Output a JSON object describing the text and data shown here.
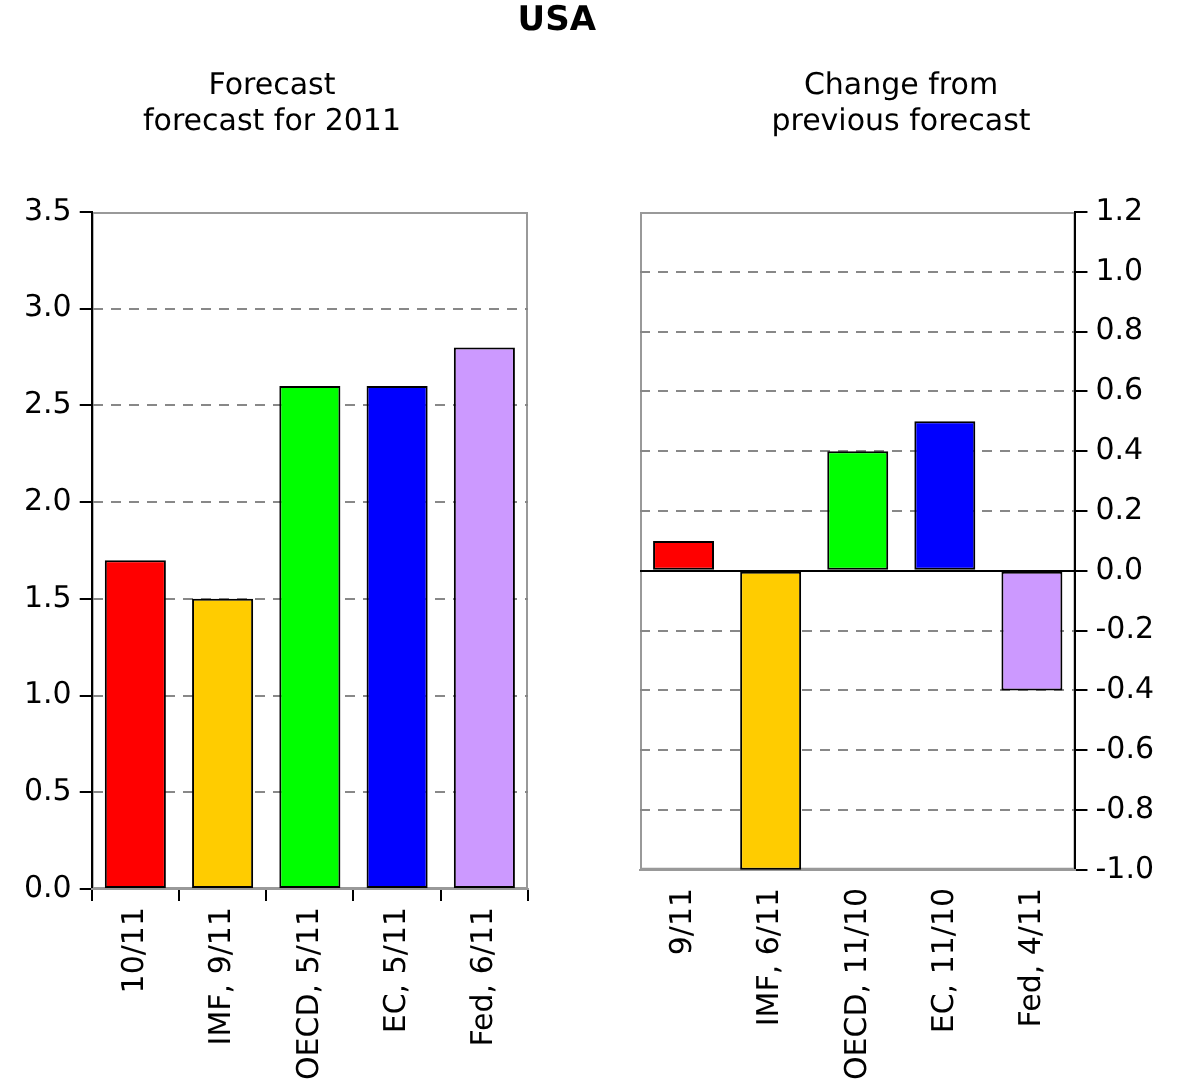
{
  "chart_data": [
    {
      "type": "bar",
      "title": "USA",
      "subtitle": "Forecast\nforecast for 2011",
      "categories": [
        "10/11",
        "IMF, 9/11",
        "OECD, 5/11",
        "EC, 5/11",
        "Fed, 6/11"
      ],
      "values": [
        1.7,
        1.5,
        2.6,
        2.6,
        2.8
      ],
      "colors": [
        "#ff0000",
        "#ffcc00",
        "#00ff00",
        "#0000ff",
        "#cc99ff"
      ],
      "ylim": [
        0,
        3.5
      ],
      "yticks": [
        {
          "value": 0,
          "label": "0.0"
        },
        0.5,
        {
          "value": 1,
          "label": "1.0"
        },
        1.5,
        {
          "value": 2,
          "label": "2.0"
        },
        2.5,
        {
          "value": 3,
          "label": "3.0"
        },
        3.5
      ],
      "grid": "y",
      "legend": false
    },
    {
      "type": "bar",
      "subtitle": "Change from\nprevious forecast",
      "categories": [
        "9/11",
        "IMF, 6/11",
        "OECD, 11/10",
        "EC, 11/10",
        "Fed, 4/11"
      ],
      "values": [
        0.1,
        -1.0,
        0.4,
        0.5,
        -0.4
      ],
      "colors": [
        "#ff0000",
        "#ffcc00",
        "#00ff00",
        "#0000ff",
        "#cc99ff"
      ],
      "ylim": [
        -1.0,
        1.2
      ],
      "yticks": [
        {
          "value": -1,
          "label": "-1.0"
        },
        -0.8,
        -0.6,
        -0.4,
        -0.2,
        {
          "value": 0,
          "label": "0.0"
        },
        0.2,
        0.4,
        0.6,
        0.8,
        {
          "value": 1,
          "label": "1.0"
        },
        1.2
      ],
      "grid": "y",
      "legend": false,
      "ref_lines": [
        {
          "axis": "y",
          "value": 0,
          "color": "#000000",
          "line_style": "solid"
        }
      ]
    }
  ]
}
